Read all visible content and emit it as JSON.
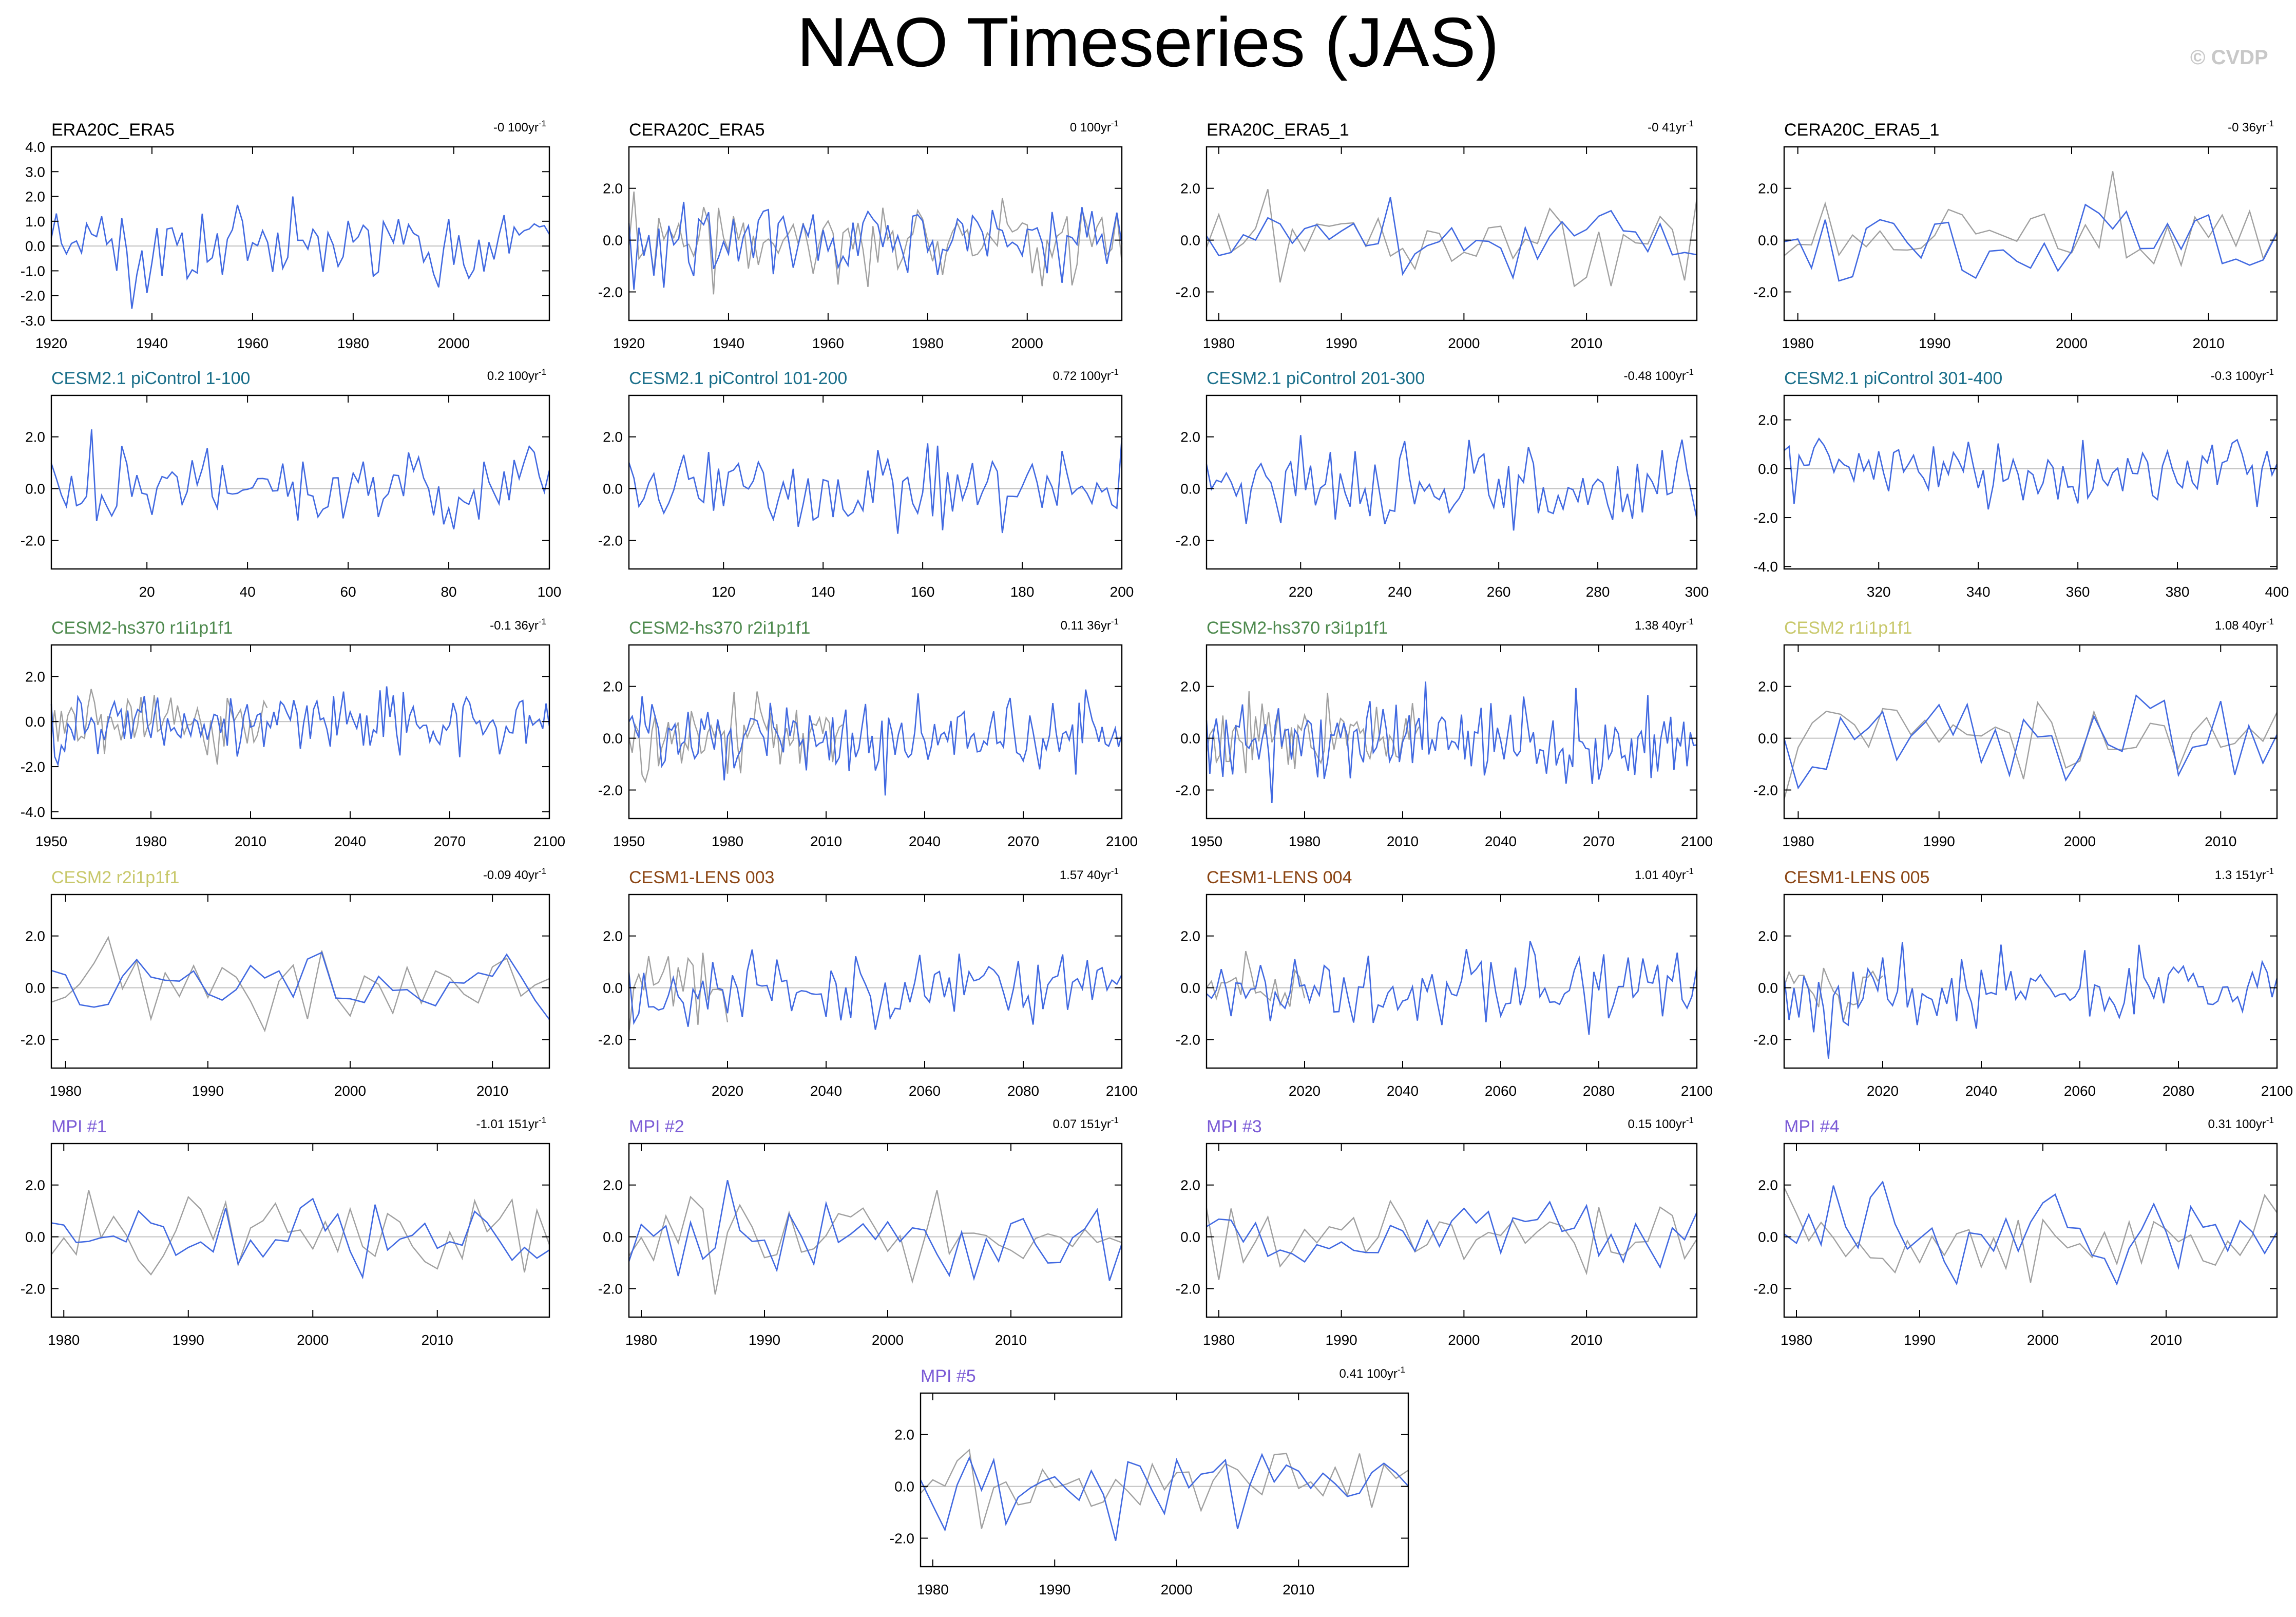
{
  "title": "NAO Timeseries (JAS)",
  "watermark": "© CVDP",
  "colors": {
    "simulation": "#4169e1",
    "observation": "#a0a0a0",
    "zero_line": "#c0c0c0",
    "frame": "#000000",
    "title_obs": "#000000",
    "title_cesm21_picontrol": "#1a6f8a",
    "title_cesm2_hs370": "#4e8a4e",
    "title_cesm2": "#c8c86a",
    "title_cesm1_lens": "#8b4513",
    "title_mpi": "#7b5bd6"
  },
  "chart_data": [
    {
      "type": "line",
      "title": "ERA20C_ERA5",
      "trend_value": "-0",
      "trend_unit": "100yr",
      "trend_exp": "-1",
      "title_color": "#000000",
      "xlim": [
        1920,
        2019
      ],
      "ylim": [
        -3,
        4
      ],
      "xticks": [
        1920,
        1940,
        1960,
        1980,
        2000
      ],
      "yticks": [
        4,
        3,
        2,
        1,
        0,
        -1,
        -2,
        -3
      ],
      "ytick_format": "1",
      "zero_line": true,
      "series": [
        {
          "role": "simulation",
          "seed": 1
        }
      ]
    },
    {
      "type": "line",
      "title": "CERA20C_ERA5",
      "trend_value": "0",
      "trend_unit": "100yr",
      "trend_exp": "-1",
      "title_color": "#000000",
      "xlim": [
        1920,
        2019
      ],
      "ylim": [
        -3.1,
        3.6
      ],
      "xticks": [
        1920,
        1940,
        1960,
        1980,
        2000
      ],
      "yticks": [
        2,
        0,
        -2
      ],
      "ytick_format": "1",
      "zero_line": true,
      "series": [
        {
          "role": "observation",
          "seed": 101
        },
        {
          "role": "simulation",
          "seed": 2
        }
      ]
    },
    {
      "type": "line",
      "title": "ERA20C_ERA5_1",
      "trend_value": "-0",
      "trend_unit": "41yr",
      "trend_exp": "-1",
      "title_color": "#000000",
      "xlim": [
        1979,
        2019
      ],
      "ylim": [
        -3.1,
        3.6
      ],
      "xticks": [
        1980,
        1990,
        2000,
        2010
      ],
      "yticks": [
        2,
        0,
        -2
      ],
      "ytick_format": "1",
      "zero_line": true,
      "series": [
        {
          "role": "observation",
          "seed": 102
        },
        {
          "role": "simulation",
          "seed": 3
        }
      ]
    },
    {
      "type": "line",
      "title": "CERA20C_ERA5_1",
      "trend_value": "-0",
      "trend_unit": "36yr",
      "trend_exp": "-1",
      "title_color": "#000000",
      "xlim": [
        1979,
        2015
      ],
      "ylim": [
        -3.1,
        3.6
      ],
      "xticks": [
        1980,
        1990,
        2000,
        2010
      ],
      "yticks": [
        2,
        0,
        -2
      ],
      "ytick_format": "1",
      "zero_line": true,
      "series": [
        {
          "role": "observation",
          "seed": 103
        },
        {
          "role": "simulation",
          "seed": 4
        }
      ]
    },
    {
      "type": "line",
      "title": "CESM2.1 piControl 1-100",
      "trend_value": "0.2",
      "trend_unit": "100yr",
      "trend_exp": "-1",
      "title_color": "#1a6f8a",
      "xlim": [
        1,
        100
      ],
      "ylim": [
        -3.1,
        3.6
      ],
      "xticks": [
        20,
        40,
        60,
        80,
        100
      ],
      "yticks": [
        2,
        0,
        -2
      ],
      "ytick_format": "1",
      "zero_line": true,
      "series": [
        {
          "role": "simulation",
          "seed": 5
        }
      ]
    },
    {
      "type": "line",
      "title": "CESM2.1 piControl 101-200",
      "trend_value": "0.72",
      "trend_unit": "100yr",
      "trend_exp": "-1",
      "title_color": "#1a6f8a",
      "xlim": [
        101,
        200
      ],
      "ylim": [
        -3.1,
        3.6
      ],
      "xticks": [
        120,
        140,
        160,
        180,
        200
      ],
      "yticks": [
        2,
        0,
        -2
      ],
      "ytick_format": "1",
      "zero_line": true,
      "series": [
        {
          "role": "simulation",
          "seed": 6
        }
      ]
    },
    {
      "type": "line",
      "title": "CESM2.1 piControl 201-300",
      "trend_value": "-0.48",
      "trend_unit": "100yr",
      "trend_exp": "-1",
      "title_color": "#1a6f8a",
      "xlim": [
        201,
        300
      ],
      "ylim": [
        -3.1,
        3.6
      ],
      "xticks": [
        220,
        240,
        260,
        280,
        300
      ],
      "yticks": [
        2,
        0,
        -2
      ],
      "ytick_format": "1",
      "zero_line": true,
      "series": [
        {
          "role": "simulation",
          "seed": 7
        }
      ]
    },
    {
      "type": "line",
      "title": "CESM2.1 piControl 301-400",
      "trend_value": "-0.3",
      "trend_unit": "100yr",
      "trend_exp": "-1",
      "title_color": "#1a6f8a",
      "xlim": [
        301,
        400
      ],
      "ylim": [
        -4.1,
        3.0
      ],
      "xticks": [
        320,
        340,
        360,
        380,
        400
      ],
      "yticks": [
        2,
        0,
        -2,
        -4
      ],
      "ytick_format": "1",
      "zero_line": true,
      "series": [
        {
          "role": "simulation",
          "seed": 8
        }
      ]
    },
    {
      "type": "line",
      "title": "CESM2-hs370 r1i1p1f1",
      "trend_value": "-0.1",
      "trend_unit": "36yr",
      "trend_exp": "-1",
      "title_color": "#4e8a4e",
      "xlim": [
        1950,
        2100
      ],
      "ylim": [
        -4.3,
        3.4
      ],
      "xticks": [
        1950,
        1980,
        2010,
        2040,
        2070,
        2100
      ],
      "yticks": [
        2,
        0,
        -2,
        -4
      ],
      "ytick_format": "1",
      "zero_line": true,
      "series": [
        {
          "role": "observation",
          "seed": 104,
          "x_end": 2015
        },
        {
          "role": "simulation",
          "seed": 9
        }
      ]
    },
    {
      "type": "line",
      "title": "CESM2-hs370 r2i1p1f1",
      "trend_value": "0.11",
      "trend_unit": "36yr",
      "trend_exp": "-1",
      "title_color": "#4e8a4e",
      "xlim": [
        1950,
        2100
      ],
      "ylim": [
        -3.1,
        3.6
      ],
      "xticks": [
        1950,
        1980,
        2010,
        2040,
        2070,
        2100
      ],
      "yticks": [
        2,
        0,
        -2
      ],
      "ytick_format": "1",
      "zero_line": true,
      "series": [
        {
          "role": "observation",
          "seed": 105,
          "x_end": 2015
        },
        {
          "role": "simulation",
          "seed": 10
        }
      ]
    },
    {
      "type": "line",
      "title": "CESM2-hs370 r3i1p1f1",
      "trend_value": "1.38",
      "trend_unit": "40yr",
      "trend_exp": "-1",
      "title_color": "#4e8a4e",
      "xlim": [
        1950,
        2100
      ],
      "ylim": [
        -3.1,
        3.6
      ],
      "xticks": [
        1950,
        1980,
        2010,
        2040,
        2070,
        2100
      ],
      "yticks": [
        2,
        0,
        -2
      ],
      "ytick_format": "1",
      "zero_line": true,
      "series": [
        {
          "role": "observation",
          "seed": 106,
          "x_end": 2015
        },
        {
          "role": "simulation",
          "seed": 11
        }
      ]
    },
    {
      "type": "line",
      "title": "CESM2 r1i1p1f1",
      "trend_value": "1.08",
      "trend_unit": "40yr",
      "trend_exp": "-1",
      "title_color": "#c8c86a",
      "xlim": [
        1979,
        2014
      ],
      "ylim": [
        -3.1,
        3.6
      ],
      "xticks": [
        1980,
        1990,
        2000,
        2010
      ],
      "yticks": [
        2,
        0,
        -2
      ],
      "ytick_format": "1",
      "zero_line": true,
      "series": [
        {
          "role": "observation",
          "seed": 107
        },
        {
          "role": "simulation",
          "seed": 12
        }
      ]
    },
    {
      "type": "line",
      "title": "CESM2 r2i1p1f1",
      "trend_value": "-0.09",
      "trend_unit": "40yr",
      "trend_exp": "-1",
      "title_color": "#c8c86a",
      "xlim": [
        1979,
        2014
      ],
      "ylim": [
        -3.1,
        3.6
      ],
      "xticks": [
        1980,
        1990,
        2000,
        2010
      ],
      "yticks": [
        2,
        0,
        -2
      ],
      "ytick_format": "1",
      "zero_line": true,
      "series": [
        {
          "role": "observation",
          "seed": 108
        },
        {
          "role": "simulation",
          "seed": 13
        }
      ]
    },
    {
      "type": "line",
      "title": "CESM1-LENS 003",
      "trend_value": "1.57",
      "trend_unit": "40yr",
      "trend_exp": "-1",
      "title_color": "#8b4513",
      "xlim": [
        2000,
        2100
      ],
      "ylim": [
        -3.1,
        3.6
      ],
      "xticks": [
        2020,
        2040,
        2060,
        2080,
        2100
      ],
      "yticks": [
        2,
        0,
        -2
      ],
      "ytick_format": "1",
      "zero_line": true,
      "series": [
        {
          "role": "observation",
          "seed": 109,
          "x_end": 2020
        },
        {
          "role": "simulation",
          "seed": 14
        }
      ]
    },
    {
      "type": "line",
      "title": "CESM1-LENS 004",
      "trend_value": "1.01",
      "trend_unit": "40yr",
      "trend_exp": "-1",
      "title_color": "#8b4513",
      "xlim": [
        2000,
        2100
      ],
      "ylim": [
        -3.1,
        3.6
      ],
      "xticks": [
        2020,
        2040,
        2060,
        2080,
        2100
      ],
      "yticks": [
        2,
        0,
        -2
      ],
      "ytick_format": "1",
      "zero_line": true,
      "series": [
        {
          "role": "observation",
          "seed": 110,
          "x_end": 2020
        },
        {
          "role": "simulation",
          "seed": 15
        }
      ]
    },
    {
      "type": "line",
      "title": "CESM1-LENS 005",
      "trend_value": "1.3",
      "trend_unit": "151yr",
      "trend_exp": "-1",
      "title_color": "#8b4513",
      "xlim": [
        2000,
        2100
      ],
      "ylim": [
        -3.1,
        3.6
      ],
      "xticks": [
        2020,
        2040,
        2060,
        2080,
        2100
      ],
      "yticks": [
        2,
        0,
        -2
      ],
      "ytick_format": "1",
      "zero_line": true,
      "series": [
        {
          "role": "observation",
          "seed": 111,
          "x_end": 2020
        },
        {
          "role": "simulation",
          "seed": 16
        }
      ]
    },
    {
      "type": "line",
      "title": "MPI #1",
      "trend_value": "-1.01",
      "trend_unit": "151yr",
      "trend_exp": "-1",
      "title_color": "#7b5bd6",
      "xlim": [
        1979,
        2019
      ],
      "ylim": [
        -3.1,
        3.6
      ],
      "xticks": [
        1980,
        1990,
        2000,
        2010
      ],
      "yticks": [
        2,
        0,
        -2
      ],
      "ytick_format": "1",
      "zero_line": true,
      "series": [
        {
          "role": "observation",
          "seed": 112
        },
        {
          "role": "simulation",
          "seed": 17
        }
      ]
    },
    {
      "type": "line",
      "title": "MPI #2",
      "trend_value": "0.07",
      "trend_unit": "151yr",
      "trend_exp": "-1",
      "title_color": "#7b5bd6",
      "xlim": [
        1979,
        2019
      ],
      "ylim": [
        -3.1,
        3.6
      ],
      "xticks": [
        1980,
        1990,
        2000,
        2010
      ],
      "yticks": [
        2,
        0,
        -2
      ],
      "ytick_format": "1",
      "zero_line": true,
      "series": [
        {
          "role": "observation",
          "seed": 113
        },
        {
          "role": "simulation",
          "seed": 18
        }
      ]
    },
    {
      "type": "line",
      "title": "MPI #3",
      "trend_value": "0.15",
      "trend_unit": "100yr",
      "trend_exp": "-1",
      "title_color": "#7b5bd6",
      "xlim": [
        1979,
        2019
      ],
      "ylim": [
        -3.1,
        3.6
      ],
      "xticks": [
        1980,
        1990,
        2000,
        2010
      ],
      "yticks": [
        2,
        0,
        -2
      ],
      "ytick_format": "1",
      "zero_line": true,
      "series": [
        {
          "role": "observation",
          "seed": 114
        },
        {
          "role": "simulation",
          "seed": 19
        }
      ]
    },
    {
      "type": "line",
      "title": "MPI #4",
      "trend_value": "0.31",
      "trend_unit": "100yr",
      "trend_exp": "-1",
      "title_color": "#7b5bd6",
      "xlim": [
        1979,
        2019
      ],
      "ylim": [
        -3.1,
        3.6
      ],
      "xticks": [
        1980,
        1990,
        2000,
        2010
      ],
      "yticks": [
        2,
        0,
        -2
      ],
      "ytick_format": "1",
      "zero_line": true,
      "series": [
        {
          "role": "observation",
          "seed": 115
        },
        {
          "role": "simulation",
          "seed": 20
        }
      ]
    },
    {
      "type": "line",
      "title": "MPI #5",
      "trend_value": "0.41",
      "trend_unit": "100yr",
      "trend_exp": "-1",
      "title_color": "#7b5bd6",
      "xlim": [
        1979,
        2019
      ],
      "ylim": [
        -3.1,
        3.6
      ],
      "xticks": [
        1980,
        1990,
        2000,
        2010
      ],
      "yticks": [
        2,
        0,
        -2
      ],
      "ytick_format": "1",
      "zero_line": true,
      "series": [
        {
          "role": "observation",
          "seed": 116
        },
        {
          "role": "simulation",
          "seed": 21
        }
      ]
    }
  ]
}
